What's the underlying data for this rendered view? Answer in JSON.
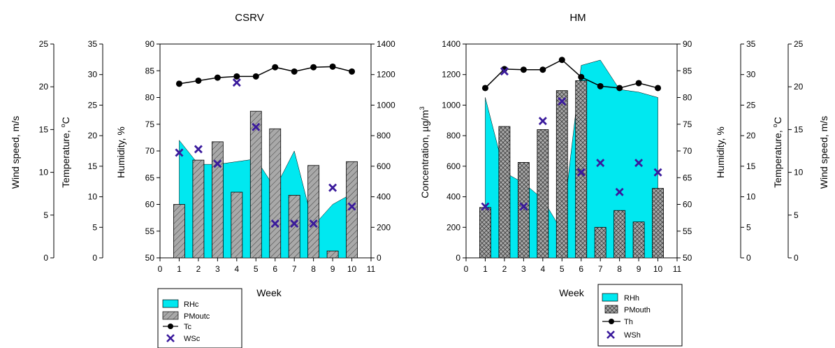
{
  "chart_data": [
    {
      "type": "bar",
      "title": "CSRV",
      "xlabel": "Week",
      "x": [
        1,
        2,
        3,
        4,
        5,
        6,
        7,
        8,
        9,
        10
      ],
      "x_ticks": [
        "0",
        "1",
        "2",
        "3",
        "4",
        "5",
        "6",
        "7",
        "8",
        "9",
        "10",
        "11"
      ],
      "xlim": [
        0,
        11
      ],
      "axes": {
        "wind": {
          "label": "Wind speed, m/s",
          "lim": [
            0,
            25
          ],
          "ticks": [
            "0",
            "5",
            "10",
            "15",
            "20",
            "25"
          ]
        },
        "temp": {
          "label": "Temperature, °C",
          "label_main": "Temperature, ",
          "label_sup": "o",
          "label_end": "C",
          "lim": [
            0,
            35
          ],
          "ticks": [
            "0",
            "5",
            "10",
            "15",
            "20",
            "25",
            "30",
            "35"
          ]
        },
        "hum": {
          "label": "Humidity, %",
          "lim": [
            50,
            90
          ],
          "ticks": [
            "50",
            "55",
            "60",
            "65",
            "70",
            "75",
            "80",
            "85",
            "90"
          ]
        },
        "conc": {
          "label": "",
          "lim": [
            0,
            1400
          ],
          "ticks": [
            "0",
            "200",
            "400",
            "600",
            "800",
            "1000",
            "1200",
            "1400"
          ]
        }
      },
      "series": [
        {
          "name": "RHc",
          "kind": "area",
          "axis": "hum",
          "values": [
            72,
            67.5,
            67.5,
            68,
            68.5,
            63,
            70,
            56,
            60,
            62
          ]
        },
        {
          "name": "PMoutc",
          "kind": "bar",
          "axis": "conc",
          "values": [
            350,
            640,
            760,
            430,
            960,
            845,
            410,
            605,
            45,
            630
          ]
        },
        {
          "name": "Tc",
          "kind": "line",
          "axis": "temp",
          "values": [
            28.5,
            29,
            29.5,
            29.7,
            29.7,
            31.2,
            30.5,
            31.2,
            31.3,
            30.5
          ]
        },
        {
          "name": "WSc",
          "kind": "marker",
          "axis": "wind",
          "values": [
            12.3,
            12.7,
            11,
            20.5,
            15.3,
            4,
            4,
            4,
            8.2,
            6
          ]
        }
      ],
      "colors": {
        "area": "#00e8f0",
        "bar": "#a9a9a9",
        "line": "#000000",
        "marker": "#3a1a9c"
      }
    },
    {
      "type": "bar",
      "title": "HM",
      "xlabel": "Week",
      "x": [
        1,
        2,
        3,
        4,
        5,
        6,
        7,
        8,
        9,
        10
      ],
      "x_ticks": [
        "0",
        "1",
        "2",
        "3",
        "4",
        "5",
        "6",
        "7",
        "8",
        "9",
        "10",
        "11"
      ],
      "xlim": [
        0,
        11
      ],
      "axes": {
        "conc": {
          "label": "Concentration, µg/m3",
          "label_main": "Concentration, ",
          "label_mu": "µg/m",
          "label_sup": "3",
          "lim": [
            0,
            1400
          ],
          "ticks": [
            "0",
            "200",
            "400",
            "600",
            "800",
            "1000",
            "1200",
            "1400"
          ]
        },
        "hum": {
          "label": "Humidity, %",
          "lim": [
            50,
            90
          ],
          "ticks": [
            "50",
            "55",
            "60",
            "65",
            "70",
            "75",
            "80",
            "85",
            "90"
          ]
        },
        "temp": {
          "label": "Temperature, °C",
          "label_main": "Temperature, ",
          "label_sup": "o",
          "label_end": "C",
          "lim": [
            0,
            35
          ],
          "ticks": [
            "0",
            "5",
            "10",
            "15",
            "20",
            "25",
            "30",
            "35"
          ]
        },
        "wind": {
          "label": "Wind speed, m/s",
          "lim": [
            0,
            25
          ],
          "ticks": [
            "0",
            "5",
            "10",
            "15",
            "20",
            "25"
          ]
        }
      },
      "series": [
        {
          "name": "RHh",
          "kind": "area",
          "axis": "hum",
          "values": [
            80,
            66,
            64,
            61,
            55,
            86,
            87,
            81.5,
            81,
            80
          ]
        },
        {
          "name": "PMouth",
          "kind": "bar",
          "axis": "conc",
          "values": [
            330,
            860,
            625,
            840,
            1095,
            1160,
            200,
            310,
            235,
            455
          ]
        },
        {
          "name": "Th",
          "kind": "line",
          "axis": "temp",
          "values": [
            27.8,
            30.9,
            30.8,
            30.8,
            32.4,
            29.6,
            28.1,
            27.8,
            28.6,
            27.8
          ]
        },
        {
          "name": "WSh",
          "kind": "marker",
          "axis": "wind",
          "values": [
            6,
            21.8,
            6,
            16,
            18.3,
            10,
            11.1,
            7.7,
            11.1,
            10
          ]
        }
      ],
      "colors": {
        "area": "#00e8f0",
        "bar": "#a9a9a9",
        "line": "#000000",
        "marker": "#3a1a9c"
      }
    }
  ]
}
